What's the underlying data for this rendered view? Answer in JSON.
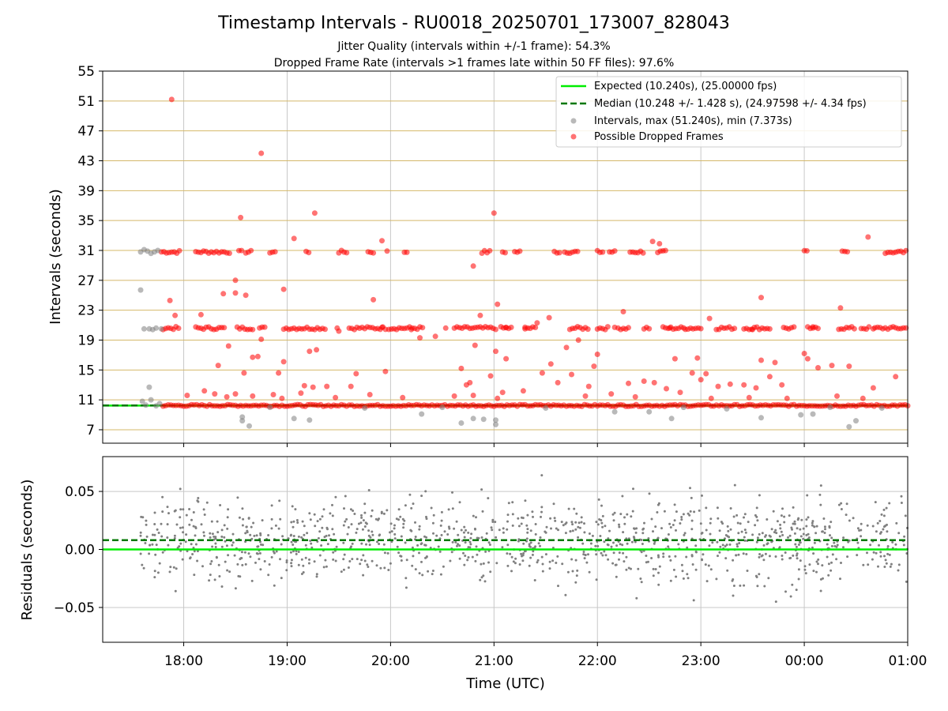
{
  "header": {
    "title": "Timestamp Intervals - RU0018_20250701_173007_828043",
    "subtitle_jitter": "Jitter Quality (intervals within +/-1 frame): 54.3%",
    "subtitle_dropped": "Dropped Frame Rate (intervals >1 frames late within 50 FF files): 97.6%"
  },
  "colors": {
    "expected": "#00ee00",
    "median": "#007700",
    "normal": "#808080",
    "dropped": "#ff0000",
    "hgrid": "#d4b86a",
    "vgrid": "#c8c8c8"
  },
  "chart_data": [
    {
      "type": "scatter",
      "ylabel": "Intervals (seconds)",
      "xlabel": "",
      "ylim": [
        5.2,
        55
      ],
      "xlim": [
        "2025-07-01T17:13",
        "2025-07-02T01:00"
      ],
      "yticks": [
        7,
        11,
        15,
        19,
        23,
        27,
        31,
        35,
        39,
        43,
        47,
        51,
        55
      ],
      "grid": "horizontal lines at ticks, vertical lines at hours",
      "legend_position": "top-right",
      "legend": [
        {
          "label": "Expected (10.240s), (25.00000 fps)",
          "kind": "solid-line"
        },
        {
          "label": "Median (10.248 +/- 1.428 s), (24.97598 +/- 4.34 fps)",
          "kind": "dashed-line"
        },
        {
          "label": "Intervals, max (51.240s), min (7.373s)",
          "kind": "grey-marker"
        },
        {
          "label": "Possible Dropped Frames",
          "kind": "red-marker"
        }
      ],
      "expected_interval": 10.24,
      "median_interval": 10.248,
      "series": [
        {
          "name": "Intervals, max (51.240s), min (7.373s)",
          "points": [
            [
              "17:35",
              30.8
            ],
            [
              "17:37",
              31.1
            ],
            [
              "17:39",
              30.9
            ],
            [
              "17:41",
              30.6
            ],
            [
              "17:43",
              30.8
            ],
            [
              "17:45",
              31.0
            ],
            [
              "17:35",
              25.7
            ],
            [
              "17:37",
              20.5
            ],
            [
              "17:40",
              20.5
            ],
            [
              "17:42",
              20.4
            ],
            [
              "17:44",
              20.6
            ],
            [
              "17:47",
              20.5
            ],
            [
              "17:36",
              10.8
            ],
            [
              "17:38",
              10.3
            ],
            [
              "17:41",
              11.0
            ],
            [
              "17:44",
              10.2
            ],
            [
              "17:46",
              10.5
            ],
            [
              "17:40",
              12.7
            ],
            [
              "18:34",
              8.7
            ],
            [
              "18:34",
              8.2
            ],
            [
              "18:38",
              7.5
            ],
            [
              "19:04",
              8.5
            ],
            [
              "19:13",
              8.3
            ],
            [
              "20:18",
              9.1
            ],
            [
              "20:41",
              7.9
            ],
            [
              "20:48",
              8.5
            ],
            [
              "20:54",
              8.4
            ],
            [
              "21:01",
              8.3
            ],
            [
              "21:01",
              7.7
            ],
            [
              "22:10",
              9.4
            ],
            [
              "22:30",
              9.4
            ],
            [
              "22:43",
              8.5
            ],
            [
              "23:35",
              8.6
            ],
            [
              "23:58",
              9.0
            ],
            [
              "24:05",
              9.1
            ],
            [
              "24:26",
              7.4
            ],
            [
              "24:30",
              8.2
            ],
            [
              "18:50",
              10.0
            ],
            [
              "19:45",
              9.9
            ],
            [
              "20:30",
              10.0
            ],
            [
              "21:30",
              9.9
            ],
            [
              "22:50",
              10.0
            ],
            [
              "23:15",
              9.8
            ],
            [
              "24:15",
              10.0
            ],
            [
              "24:45",
              9.9
            ]
          ]
        },
        {
          "name": "Possible Dropped Frames",
          "points": [
            [
              "17:53",
              51.2
            ],
            [
              "18:45",
              44.0
            ],
            [
              "18:33",
              35.4
            ],
            [
              "19:16",
              36.0
            ],
            [
              "21:00",
              36.0
            ],
            [
              "19:04",
              32.6
            ],
            [
              "19:55",
              32.3
            ],
            [
              "22:32",
              32.2
            ],
            [
              "22:36",
              31.9
            ],
            [
              "24:37",
              32.8
            ],
            [
              "18:30",
              27.0
            ],
            [
              "18:23",
              25.2
            ],
            [
              "18:30",
              25.3
            ],
            [
              "18:36",
              25.0
            ],
            [
              "18:58",
              25.8
            ],
            [
              "19:50",
              24.4
            ],
            [
              "21:02",
              23.8
            ],
            [
              "22:15",
              22.8
            ],
            [
              "23:05",
              21.9
            ],
            [
              "23:35",
              24.7
            ],
            [
              "24:21",
              23.3
            ],
            [
              "20:48",
              28.9
            ],
            [
              "17:52",
              24.3
            ],
            [
              "17:55",
              22.3
            ],
            [
              "18:10",
              22.4
            ],
            [
              "20:52",
              22.3
            ],
            [
              "21:25",
              21.3
            ],
            [
              "21:32",
              22.0
            ],
            [
              "18:26",
              18.2
            ],
            [
              "18:45",
              19.1
            ],
            [
              "19:13",
              17.5
            ],
            [
              "19:17",
              17.7
            ],
            [
              "20:17",
              19.3
            ],
            [
              "20:26",
              19.5
            ],
            [
              "20:49",
              18.3
            ],
            [
              "21:01",
              17.5
            ],
            [
              "21:07",
              16.5
            ],
            [
              "21:42",
              18.0
            ],
            [
              "21:49",
              19.0
            ],
            [
              "22:00",
              17.1
            ],
            [
              "22:45",
              16.5
            ],
            [
              "22:58",
              16.6
            ],
            [
              "23:35",
              16.3
            ],
            [
              "23:43",
              16.0
            ],
            [
              "24:00",
              17.2
            ],
            [
              "24:02",
              16.5
            ],
            [
              "18:20",
              15.6
            ],
            [
              "18:35",
              14.6
            ],
            [
              "18:40",
              16.7
            ],
            [
              "18:43",
              16.8
            ],
            [
              "18:55",
              14.6
            ],
            [
              "18:58",
              16.1
            ],
            [
              "19:10",
              12.9
            ],
            [
              "19:15",
              12.7
            ],
            [
              "19:23",
              12.8
            ],
            [
              "19:37",
              12.8
            ],
            [
              "19:40",
              14.5
            ],
            [
              "19:57",
              14.8
            ],
            [
              "20:41",
              15.2
            ],
            [
              "20:44",
              13.0
            ],
            [
              "20:46",
              13.3
            ],
            [
              "20:58",
              14.2
            ],
            [
              "21:05",
              12.0
            ],
            [
              "21:17",
              12.2
            ],
            [
              "21:28",
              14.6
            ],
            [
              "21:33",
              15.8
            ],
            [
              "21:37",
              13.3
            ],
            [
              "21:45",
              14.4
            ],
            [
              "21:55",
              12.8
            ],
            [
              "21:58",
              15.5
            ],
            [
              "22:18",
              13.2
            ],
            [
              "22:27",
              13.5
            ],
            [
              "22:33",
              13.3
            ],
            [
              "22:40",
              12.5
            ],
            [
              "22:48",
              12.0
            ],
            [
              "22:55",
              14.6
            ],
            [
              "23:00",
              13.7
            ],
            [
              "23:03",
              14.5
            ],
            [
              "23:10",
              12.8
            ],
            [
              "23:17",
              13.1
            ],
            [
              "23:25",
              13.0
            ],
            [
              "23:32",
              12.6
            ],
            [
              "23:40",
              14.1
            ],
            [
              "23:47",
              13.0
            ],
            [
              "24:08",
              15.3
            ],
            [
              "24:16",
              15.6
            ],
            [
              "24:26",
              15.5
            ],
            [
              "24:40",
              12.6
            ],
            [
              "24:53",
              14.1
            ],
            [
              "18:02",
              11.6
            ],
            [
              "18:12",
              12.2
            ],
            [
              "18:18",
              11.8
            ],
            [
              "18:25",
              11.4
            ],
            [
              "18:30",
              11.8
            ],
            [
              "18:40",
              11.5
            ],
            [
              "18:52",
              11.7
            ],
            [
              "18:57",
              11.2
            ],
            [
              "19:08",
              11.9
            ],
            [
              "19:28",
              11.3
            ],
            [
              "19:48",
              11.7
            ],
            [
              "20:07",
              11.3
            ],
            [
              "20:37",
              11.5
            ],
            [
              "20:48",
              11.6
            ],
            [
              "21:02",
              11.2
            ],
            [
              "21:53",
              11.5
            ],
            [
              "22:08",
              11.8
            ],
            [
              "22:22",
              11.4
            ],
            [
              "23:06",
              11.2
            ],
            [
              "23:28",
              11.3
            ],
            [
              "23:50",
              11.2
            ],
            [
              "24:19",
              11.5
            ],
            [
              "24:34",
              11.2
            ],
            [
              "19:29",
              20.6
            ],
            [
              "19:30",
              20.2
            ],
            [
              "21:07",
              20.7
            ],
            [
              "21:18",
              20.5
            ],
            [
              "22:10",
              20.7
            ],
            [
              "22:42",
              20.6
            ],
            [
              "23:30",
              20.4
            ],
            [
              "24:05",
              20.6
            ],
            [
              "24:40",
              20.5
            ],
            [
              "19:55",
              20.7
            ],
            [
              "20:12",
              20.4
            ],
            [
              "20:32",
              20.6
            ]
          ]
        }
      ],
      "row_bands": {
        "ms_step": "1.5",
        "bands": [
          {
            "series": "Possible Dropped Frames",
            "value": 30.8,
            "segments": [
              [
                "17:47",
                "17:58"
              ],
              [
                "18:07",
                "18:27"
              ],
              [
                "18:32",
                "18:34"
              ],
              [
                "18:36",
                "18:39"
              ],
              [
                "18:50",
                "18:53"
              ],
              [
                "19:11",
                "19:13"
              ],
              [
                "19:30",
                "19:35"
              ],
              [
                "19:47",
                "19:51"
              ],
              [
                "19:58",
                "19:59"
              ],
              [
                "20:08",
                "20:10"
              ],
              [
                "20:53",
                "20:58"
              ],
              [
                "21:05",
                "21:07"
              ],
              [
                "21:12",
                "21:15"
              ],
              [
                "21:35",
                "21:39"
              ],
              [
                "21:41",
                "21:49"
              ],
              [
                "22:00",
                "22:03"
              ],
              [
                "22:07",
                "22:11"
              ],
              [
                "22:19",
                "22:27"
              ],
              [
                "22:35",
                "22:40"
              ],
              [
                "24:00",
                "24:02"
              ],
              [
                "24:22",
                "24:25"
              ],
              [
                "24:47",
                "25:00"
              ]
            ]
          },
          {
            "series": "Possible Dropped Frames",
            "value": 20.6,
            "segments": [
              [
                "17:48",
                "17:58"
              ],
              [
                "18:07",
                "18:24"
              ],
              [
                "18:31",
                "18:40"
              ],
              [
                "18:44",
                "18:48"
              ],
              [
                "18:58",
                "19:23"
              ],
              [
                "19:36",
                "19:58"
              ],
              [
                "19:59",
                "20:19"
              ],
              [
                "20:37",
                "21:02"
              ],
              [
                "21:04",
                "21:10"
              ],
              [
                "21:18",
                "21:25"
              ],
              [
                "21:44",
                "21:55"
              ],
              [
                "22:00",
                "22:06"
              ],
              [
                "22:12",
                "22:19"
              ],
              [
                "22:27",
                "22:30"
              ],
              [
                "22:38",
                "22:50"
              ],
              [
                "22:51",
                "23:00"
              ],
              [
                "23:09",
                "23:20"
              ],
              [
                "23:25",
                "23:40"
              ],
              [
                "23:48",
                "23:55"
              ],
              [
                "24:02",
                "24:09"
              ],
              [
                "24:20",
                "24:29"
              ],
              [
                "24:33",
                "24:38"
              ],
              [
                "24:41",
                "25:00"
              ]
            ]
          },
          {
            "series": "Possible Dropped Frames",
            "value": 10.25,
            "segments": [
              [
                "17:48",
                "25:00"
              ]
            ]
          }
        ]
      }
    },
    {
      "type": "scatter",
      "ylabel": "Residuals (seconds)",
      "xlabel": "Time (UTC)",
      "ylim": [
        -0.08,
        0.08
      ],
      "yticks": [
        "0.05",
        "0.00",
        "−0.05"
      ],
      "xticks": [
        "18:00",
        "19:00",
        "20:00",
        "21:00",
        "22:00",
        "23:00",
        "00:00",
        "01:00"
      ],
      "expected_residual": 0.0,
      "median_residual": 0.008,
      "grid": "horizontal and vertical",
      "scatter_summary": {
        "series": "residuals",
        "x_range": [
          "17:35",
          "25:00"
        ],
        "center": 0.008,
        "spread_sd": 0.022,
        "points_shown": 1200,
        "note": "grey dots, roughly uniform density over time, occasional outliers up to +/-0.08"
      }
    }
  ]
}
